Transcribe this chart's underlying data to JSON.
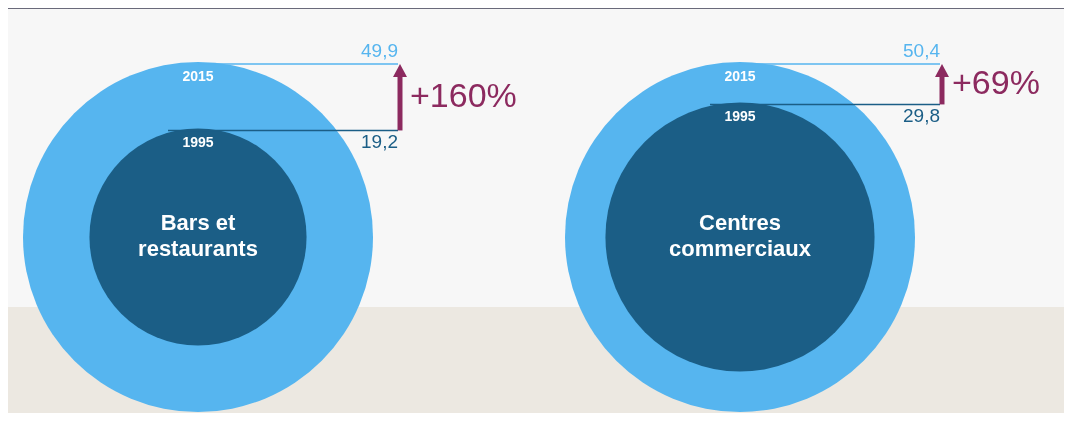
{
  "chart_data": [
    {
      "type": "other",
      "title": "Bars et restaurants",
      "categories": [
        "1995",
        "2015"
      ],
      "values": [
        19.2,
        49.9
      ],
      "colors": [
        "#1b5e86",
        "#56b5ef"
      ],
      "value_labels": [
        "19,2",
        "49,9"
      ],
      "annotations": [
        "+160%"
      ]
    },
    {
      "type": "other",
      "title": "Centres commerciaux",
      "categories": [
        "1995",
        "2015"
      ],
      "values": [
        29.8,
        50.4
      ],
      "colors": [
        "#1b5e86",
        "#56b5ef"
      ],
      "value_labels": [
        "29,8",
        "50,4"
      ],
      "annotations": [
        "+69%"
      ]
    }
  ]
}
